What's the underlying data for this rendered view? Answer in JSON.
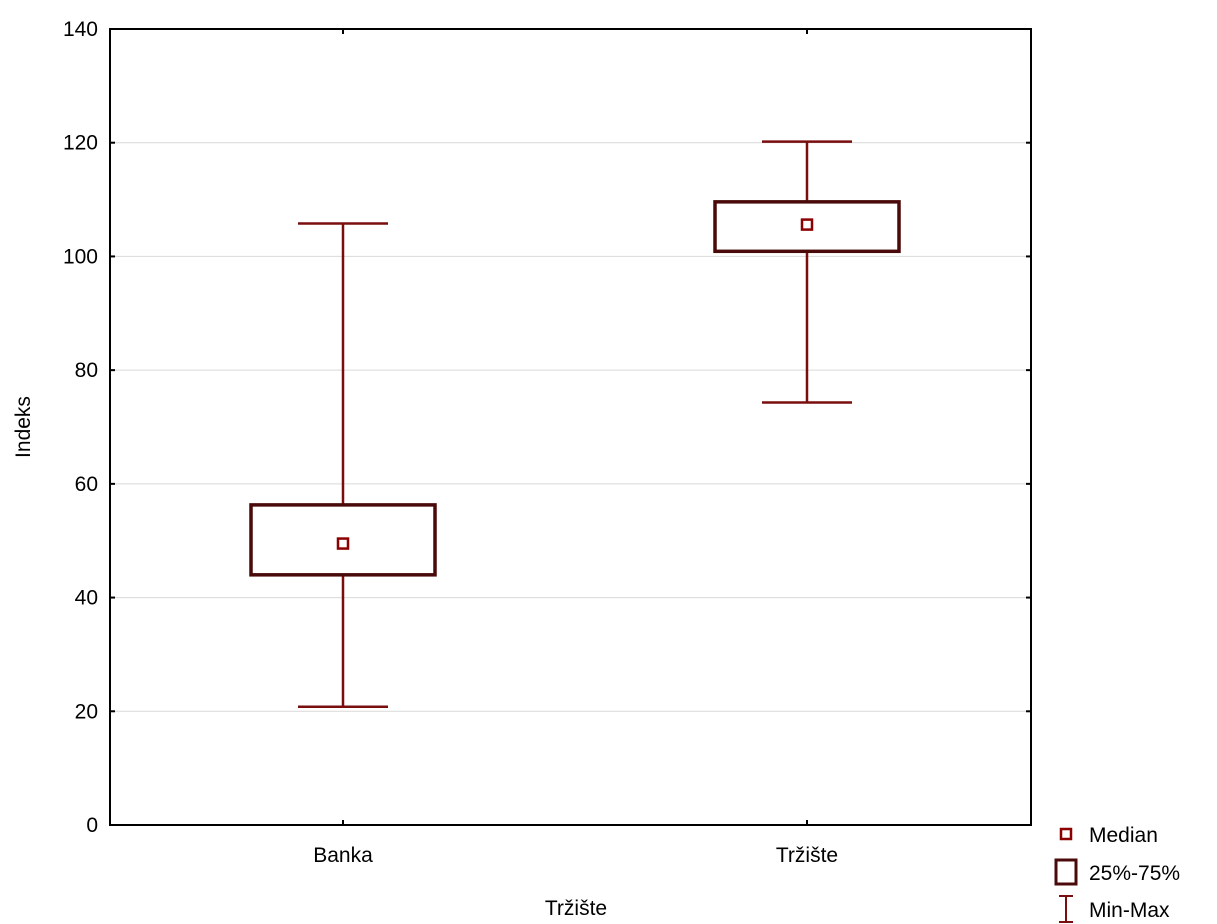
{
  "chart_data": {
    "type": "boxplot",
    "xlabel": "Tržište",
    "ylabel": "Indeks",
    "ylim": [
      0,
      140
    ],
    "yticks": [
      0,
      20,
      40,
      60,
      80,
      100,
      120,
      140
    ],
    "grid": true,
    "legend_position": "bottom-right",
    "categories": [
      "Banka",
      "Tržište"
    ],
    "boxes": [
      {
        "category": "Banka",
        "min": 20.8,
        "q1": 44,
        "median": 49.5,
        "q3": 56.3,
        "max": 105.8
      },
      {
        "category": "Tržište",
        "min": 74.3,
        "q1": 100.9,
        "median": 105.6,
        "q3": 109.6,
        "max": 120.2
      }
    ],
    "legend": [
      {
        "key": "median",
        "label": "Median"
      },
      {
        "key": "box",
        "label": "25%-75%"
      },
      {
        "key": "whisker",
        "label": "Min-Max"
      }
    ],
    "colors": {
      "median": "#8b0000",
      "box": "#4a0a0a",
      "whisker": "#7a0e0e",
      "grid": "#d9d9d9",
      "axis": "#000000"
    }
  }
}
